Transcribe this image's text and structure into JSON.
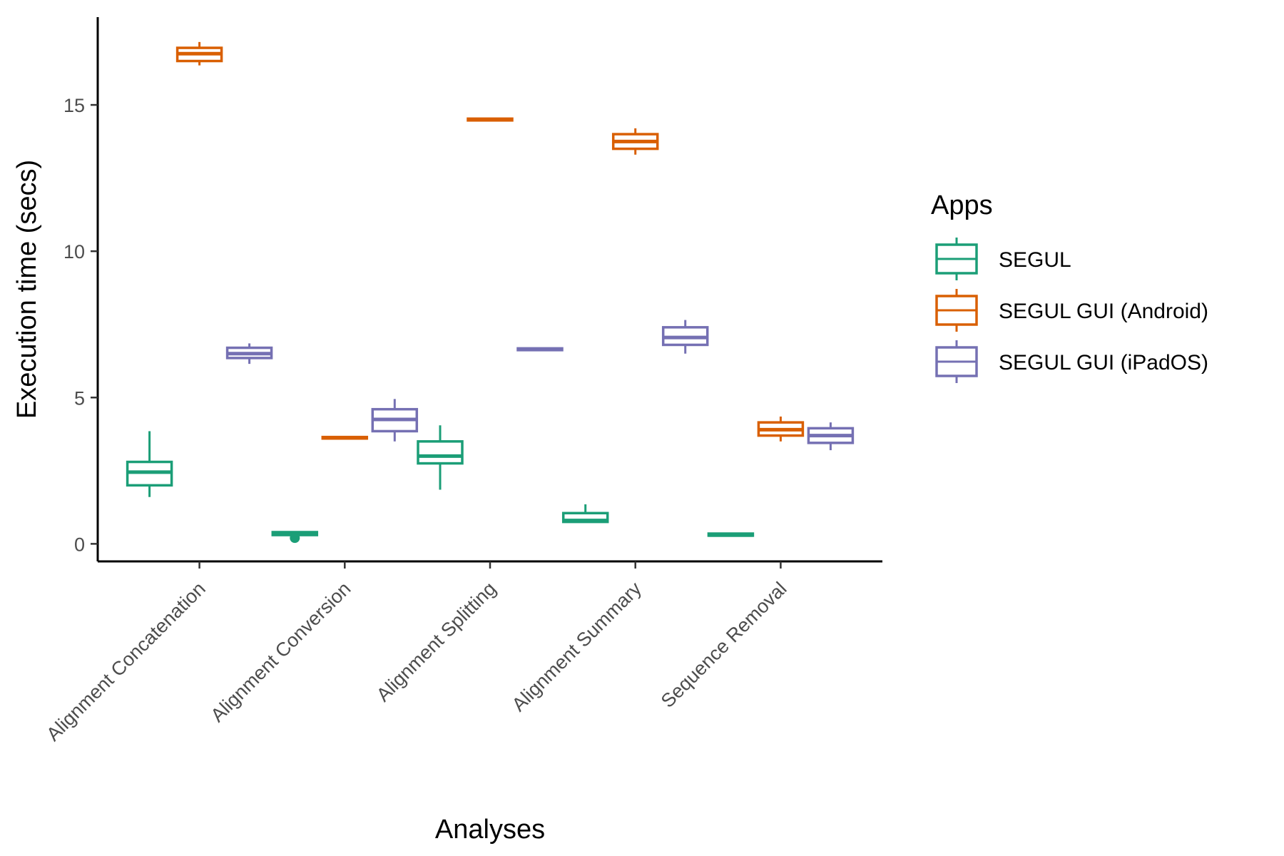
{
  "chart_data": {
    "type": "boxplot",
    "xlabel": "Analyses",
    "ylabel": "Execution time (secs)",
    "ylim": [
      -0.6,
      18
    ],
    "yticks": [
      0,
      5,
      10,
      15
    ],
    "grid": false,
    "legend": {
      "title": "Apps",
      "position": "right"
    },
    "categories": [
      "Alignment Concatenation",
      "Alignment Conversion",
      "Alignment Splitting",
      "Alignment Summary",
      "Sequence Removal"
    ],
    "series": [
      {
        "name": "SEGUL",
        "color": "#1b9e77",
        "boxes": [
          {
            "min": 1.6,
            "q1": 2.0,
            "median": 2.45,
            "q3": 2.8,
            "max": 3.85
          },
          {
            "min": 0.3,
            "q1": 0.3,
            "median": 0.35,
            "q3": 0.4,
            "max": 0.4,
            "outliers": [
              0.2
            ]
          },
          {
            "min": 1.85,
            "q1": 2.75,
            "median": 3.0,
            "q3": 3.5,
            "max": 4.05
          },
          {
            "min": 0.75,
            "q1": 0.75,
            "median": 0.8,
            "q3": 1.05,
            "max": 1.35
          },
          {
            "min": 0.28,
            "q1": 0.28,
            "median": 0.3,
            "q3": 0.35,
            "max": 0.35
          }
        ]
      },
      {
        "name": "SEGUL GUI (Android)",
        "color": "#d95f02",
        "boxes": [
          {
            "min": 16.35,
            "q1": 16.5,
            "median": 16.75,
            "q3": 16.95,
            "max": 17.15
          },
          {
            "min": 3.6,
            "q1": 3.6,
            "median": 3.62,
            "q3": 3.65,
            "max": 3.65
          },
          {
            "min": 14.47,
            "q1": 14.47,
            "median": 14.5,
            "q3": 14.53,
            "max": 14.53
          },
          {
            "min": 13.3,
            "q1": 13.5,
            "median": 13.75,
            "q3": 14.0,
            "max": 14.2
          },
          {
            "min": 3.5,
            "q1": 3.7,
            "median": 3.9,
            "q3": 4.15,
            "max": 4.35
          }
        ]
      },
      {
        "name": "SEGUL GUI (iPadOS)",
        "color": "#7570b3",
        "boxes": [
          {
            "min": 6.15,
            "q1": 6.35,
            "median": 6.5,
            "q3": 6.7,
            "max": 6.85
          },
          {
            "min": 3.5,
            "q1": 3.85,
            "median": 4.25,
            "q3": 4.6,
            "max": 4.95
          },
          {
            "min": 6.62,
            "q1": 6.62,
            "median": 6.65,
            "q3": 6.68,
            "max": 6.68
          },
          {
            "min": 6.5,
            "q1": 6.8,
            "median": 7.05,
            "q3": 7.4,
            "max": 7.65
          },
          {
            "min": 3.2,
            "q1": 3.45,
            "median": 3.7,
            "q3": 3.95,
            "max": 4.15
          }
        ]
      }
    ]
  }
}
